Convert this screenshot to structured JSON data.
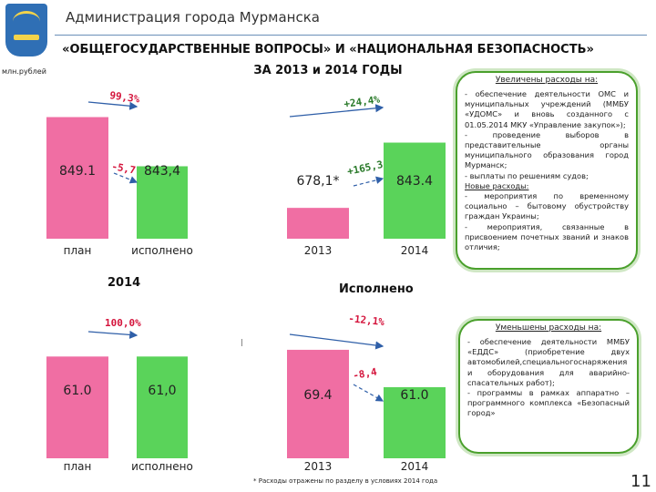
{
  "header": {
    "title": "Администрация города Мурманска"
  },
  "slide": {
    "title_line1": "«ОБЩЕГОСУДАРСТВЕННЫЕ ВОПРОСЫ» И «НАЦИОНАЛЬНАЯ БЕЗОПАСНОСТЬ»",
    "title_line2": "ЗА 2013 и 2014 ГОДЫ",
    "unit": "млн.рублей",
    "caption_2014": "2014",
    "caption_executed": "Исполнено",
    "footnote": "* Расходы отражены по разделу в условиях 2014 года",
    "page_number": "11"
  },
  "colors": {
    "plan_bar": "#f06ea3",
    "executed_bar": "#5ad35a",
    "annotation_red": "#d4143c",
    "annotation_green": "#2a7a2a",
    "arrow_blue": "#2f5fa8",
    "box_border": "#4aa02c"
  },
  "box_increase": {
    "title": "Увеличены расходы на:",
    "items": [
      "- обеспечение деятельности ОМС и муниципальных учреждений (ММБУ «УДОМС» и вновь созданного с 01.05.2014 МКУ «Управление закупок»);",
      "- проведение выборов в представительные органы муниципального образования город Мурманск;",
      "- выплаты по решениям судов;"
    ],
    "new_label": "Новые расходы:",
    "new_items": [
      "- мероприятия по временному социально – бытовому обустройству граждан Украины;",
      "- мероприятия, связанные в присвоением почетных званий и знаков отличия;"
    ]
  },
  "box_decrease": {
    "title": "Уменьшены расходы на:",
    "items": [
      "- обеспечение деятельности ММБУ «ЕДДС» (приобретение двух автомобилей,специальногоснаряжения и оборудования для аварийно-спасательных работ);",
      "- программы в рамках аппаратно – программного комплекса «Безопасный город»"
    ]
  },
  "chart_data": [
    {
      "type": "bar",
      "categories": [
        "план",
        "исполнено"
      ],
      "values": [
        849.1,
        843.4
      ],
      "value_labels": [
        "849.1",
        "843,4"
      ],
      "annotations": {
        "percent": "99,3%",
        "delta": "-5,7"
      }
    },
    {
      "type": "bar",
      "categories": [
        "2013",
        "2014"
      ],
      "values": [
        678.1,
        843.4
      ],
      "value_labels": [
        "678,1*",
        "843.4"
      ],
      "annotations": {
        "percent": "+24,4%",
        "delta": "+165,3"
      }
    },
    {
      "type": "bar",
      "categories": [
        "план",
        "исполнено"
      ],
      "values": [
        61.0,
        61.0
      ],
      "value_labels": [
        "61.0",
        "61,0"
      ],
      "annotations": {
        "percent": "100,0%"
      }
    },
    {
      "type": "bar",
      "categories": [
        "2013",
        "2014"
      ],
      "values": [
        69.4,
        61.0
      ],
      "value_labels": [
        "69.4",
        "61.0"
      ],
      "annotations": {
        "percent": "-12,1%",
        "delta": "-8,4"
      }
    }
  ]
}
